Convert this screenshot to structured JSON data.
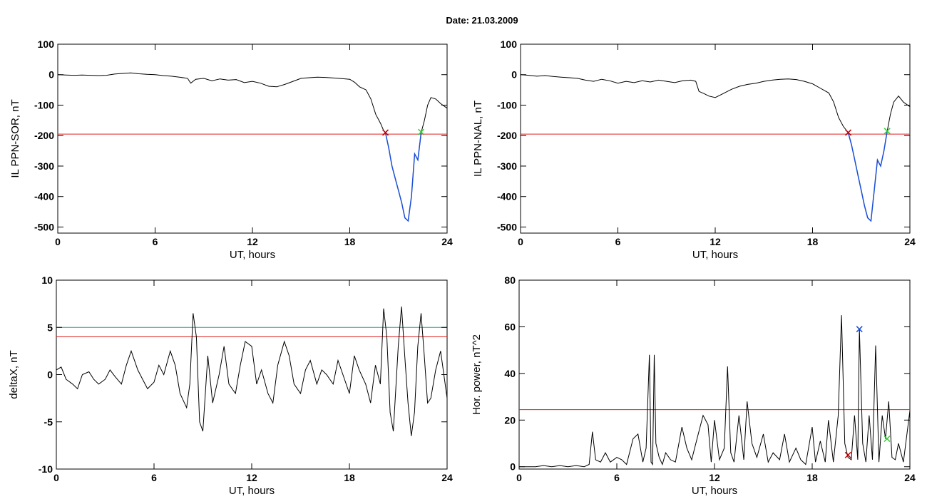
{
  "title": "Date:  21.03.2009",
  "chart_data": [
    {
      "type": "line",
      "xlabel": "UT, hours",
      "ylabel": "IL PPN-SOR, nT",
      "xlim": [
        0,
        24
      ],
      "ylim": [
        -520,
        100
      ],
      "xticks": [
        0,
        6,
        12,
        18,
        24
      ],
      "yticks": [
        100,
        0,
        -100,
        -200,
        -300,
        -400,
        -500
      ],
      "threshold": -195,
      "colors": {
        "line": "#000000",
        "highlight": "#1a4fd6",
        "threshold": "#e02020",
        "start_marker": "#c00000",
        "end_marker": "#33cc33"
      },
      "markers": [
        {
          "x": 20.2,
          "y": -190,
          "symbol": "x",
          "color": "#c00000"
        },
        {
          "x": 22.4,
          "y": -188,
          "symbol": "x",
          "color": "#33cc33"
        }
      ],
      "highlight_range": [
        20.2,
        22.4
      ],
      "x": [
        0,
        0.5,
        1,
        1.5,
        2,
        2.5,
        3,
        3.5,
        4,
        4.5,
        5,
        5.5,
        6,
        6.5,
        7,
        7.5,
        8,
        8.2,
        8.5,
        9,
        9.5,
        10,
        10.5,
        11,
        11.5,
        12,
        12.5,
        13,
        13.5,
        14,
        14.5,
        15,
        15.5,
        16,
        16.5,
        17,
        17.5,
        18,
        18.3,
        18.6,
        19,
        19.3,
        19.6,
        19.9,
        20.1,
        20.2,
        20.4,
        20.6,
        20.8,
        21,
        21.2,
        21.4,
        21.6,
        21.8,
        22,
        22.2,
        22.4,
        22.6,
        22.8,
        23,
        23.3,
        23.6,
        24
      ],
      "y": [
        0,
        -1,
        -2,
        -1,
        -2,
        -3,
        -2,
        2,
        4,
        6,
        3,
        1,
        0,
        -3,
        -5,
        -8,
        -12,
        -28,
        -15,
        -12,
        -20,
        -14,
        -18,
        -16,
        -26,
        -22,
        -28,
        -38,
        -40,
        -32,
        -22,
        -12,
        -10,
        -8,
        -9,
        -11,
        -13,
        -15,
        -25,
        -40,
        -50,
        -80,
        -130,
        -160,
        -185,
        -190,
        -240,
        -300,
        -340,
        -380,
        -420,
        -470,
        -480,
        -400,
        -260,
        -280,
        -190,
        -150,
        -100,
        -75,
        -80,
        -95,
        -110
      ]
    },
    {
      "type": "line",
      "xlabel": "UT, hours",
      "ylabel": "IL PPN-NAL, nT",
      "xlim": [
        0,
        24
      ],
      "ylim": [
        -520,
        100
      ],
      "xticks": [
        0,
        6,
        12,
        18,
        24
      ],
      "yticks": [
        100,
        0,
        -100,
        -200,
        -300,
        -400,
        -500
      ],
      "threshold": -195,
      "colors": {
        "line": "#000000",
        "highlight": "#1a4fd6",
        "threshold": "#e02020",
        "start_marker": "#c00000",
        "end_marker": "#33cc33"
      },
      "markers": [
        {
          "x": 20.2,
          "y": -190,
          "symbol": "x",
          "color": "#c00000"
        },
        {
          "x": 22.6,
          "y": -185,
          "symbol": "x",
          "color": "#33cc33"
        }
      ],
      "highlight_range": [
        20.2,
        22.6
      ],
      "x": [
        0,
        0.5,
        1,
        1.5,
        2,
        2.5,
        3,
        3.5,
        4,
        4.5,
        5,
        5.5,
        6,
        6.5,
        7,
        7.5,
        8,
        8.5,
        9,
        9.5,
        10,
        10.5,
        10.8,
        11,
        11.3,
        11.6,
        12,
        12.5,
        13,
        13.5,
        14,
        14.5,
        15,
        15.5,
        16,
        16.5,
        17,
        17.5,
        18,
        18.5,
        19,
        19.3,
        19.6,
        19.9,
        20.2,
        20.4,
        20.6,
        20.8,
        21,
        21.2,
        21.4,
        21.6,
        21.8,
        22,
        22.2,
        22.4,
        22.6,
        22.8,
        23,
        23.3,
        23.6,
        24
      ],
      "y": [
        0,
        -2,
        -5,
        -3,
        -6,
        -8,
        -10,
        -12,
        -18,
        -22,
        -15,
        -20,
        -28,
        -22,
        -26,
        -20,
        -24,
        -18,
        -22,
        -26,
        -20,
        -18,
        -22,
        -55,
        -62,
        -70,
        -75,
        -62,
        -48,
        -38,
        -32,
        -28,
        -22,
        -18,
        -15,
        -14,
        -16,
        -22,
        -30,
        -45,
        -60,
        -90,
        -140,
        -170,
        -190,
        -230,
        -280,
        -330,
        -380,
        -430,
        -470,
        -480,
        -380,
        -280,
        -300,
        -250,
        -185,
        -130,
        -90,
        -70,
        -90,
        -105
      ]
    },
    {
      "type": "line",
      "xlabel": "UT, hours",
      "ylabel": "deltaX, nT",
      "xlim": [
        0,
        24
      ],
      "ylim": [
        -10,
        10
      ],
      "xticks": [
        0,
        6,
        12,
        18,
        24
      ],
      "yticks": [
        10,
        5,
        0,
        -5,
        -10
      ],
      "thresholds": [
        {
          "y": 5,
          "color": "#2a9d9d"
        },
        {
          "y": 4,
          "color": "#e02020"
        }
      ],
      "colors": {
        "line": "#000000"
      },
      "x": [
        0,
        0.3,
        0.6,
        1,
        1.3,
        1.6,
        2,
        2.3,
        2.6,
        3,
        3.3,
        3.6,
        4,
        4.3,
        4.6,
        5,
        5.3,
        5.6,
        6,
        6.3,
        6.6,
        7,
        7.3,
        7.6,
        8,
        8.2,
        8.4,
        8.6,
        8.8,
        9,
        9.3,
        9.6,
        10,
        10.3,
        10.6,
        11,
        11.3,
        11.6,
        12,
        12.3,
        12.6,
        13,
        13.3,
        13.6,
        14,
        14.3,
        14.6,
        15,
        15.3,
        15.6,
        16,
        16.3,
        16.6,
        17,
        17.3,
        17.6,
        18,
        18.3,
        18.6,
        19,
        19.3,
        19.6,
        19.9,
        20.1,
        20.3,
        20.5,
        20.7,
        21,
        21.2,
        21.4,
        21.6,
        21.8,
        22,
        22.2,
        22.4,
        22.6,
        22.8,
        23,
        23.3,
        23.6,
        24
      ],
      "y": [
        0.5,
        0.8,
        -0.5,
        -1,
        -1.5,
        0,
        0.3,
        -0.5,
        -1,
        -0.5,
        0.5,
        -0.2,
        -1,
        1,
        2.5,
        0.5,
        -0.5,
        -1.5,
        -0.8,
        1,
        0,
        2.5,
        1,
        -2,
        -3.5,
        -1,
        6.5,
        4,
        -5,
        -6,
        2,
        -3,
        0,
        3,
        -1,
        -2,
        1,
        3.5,
        3,
        -1,
        0.5,
        -2,
        -3,
        1,
        3.5,
        2,
        -1,
        -2,
        0.5,
        1.5,
        -1,
        0.5,
        0,
        -1,
        1.5,
        0,
        -2,
        2,
        0.5,
        -1,
        -3,
        1,
        -1,
        7,
        4,
        -4,
        -6,
        3,
        7.2,
        2,
        -3,
        -6.5,
        -4,
        3,
        6.5,
        2,
        -3,
        -2.5,
        0.5,
        2.5,
        -2.5
      ]
    },
    {
      "type": "line",
      "xlabel": "UT, hours",
      "ylabel": "Hor. power, nT^2",
      "xlim": [
        0,
        24
      ],
      "ylim": [
        -1,
        80
      ],
      "xticks": [
        0,
        6,
        12,
        18,
        24
      ],
      "yticks": [
        80,
        60,
        40,
        20,
        0
      ],
      "threshold": 24.5,
      "colors": {
        "line": "#000000",
        "threshold": "#e02020",
        "peak_marker": "#1a4fd6",
        "end_marker": "#33cc33",
        "start_marker": "#c00000"
      },
      "markers": [
        {
          "x": 20.2,
          "y": 5,
          "symbol": "x",
          "color": "#c00000"
        },
        {
          "x": 20.9,
          "y": 59,
          "symbol": "x",
          "color": "#1a4fd6"
        },
        {
          "x": 22.6,
          "y": 12,
          "symbol": "x",
          "color": "#33cc33"
        }
      ],
      "x": [
        0,
        0.5,
        1,
        1.5,
        2,
        2.5,
        3,
        3.5,
        4,
        4.3,
        4.5,
        4.7,
        5,
        5.3,
        5.6,
        6,
        6.3,
        6.6,
        7,
        7.3,
        7.6,
        7.8,
        8,
        8.1,
        8.2,
        8.3,
        8.4,
        8.6,
        8.8,
        9,
        9.3,
        9.6,
        10,
        10.3,
        10.6,
        11,
        11.3,
        11.6,
        11.8,
        12,
        12.3,
        12.6,
        12.8,
        13,
        13.2,
        13.5,
        13.8,
        14,
        14.3,
        14.6,
        15,
        15.3,
        15.6,
        16,
        16.3,
        16.6,
        17,
        17.3,
        17.6,
        18,
        18.2,
        18.5,
        18.8,
        19,
        19.3,
        19.6,
        19.8,
        20,
        20.2,
        20.4,
        20.6,
        20.8,
        20.9,
        21.1,
        21.3,
        21.5,
        21.7,
        21.9,
        22.1,
        22.3,
        22.5,
        22.7,
        22.9,
        23.1,
        23.3,
        23.6,
        24
      ],
      "y": [
        0,
        0,
        0,
        0.5,
        0,
        0.5,
        0,
        0.5,
        0,
        1,
        15,
        3,
        2,
        6,
        2,
        4,
        3,
        1,
        12,
        14,
        2,
        8,
        48,
        2,
        1,
        48,
        10,
        4,
        1,
        6,
        3,
        2,
        17,
        8,
        3,
        14,
        22,
        18,
        2,
        20,
        3,
        8,
        43,
        6,
        2,
        22,
        3,
        28,
        10,
        4,
        14,
        2,
        6,
        3,
        14,
        2,
        8,
        3,
        1,
        17,
        2,
        11,
        2,
        20,
        2,
        22,
        65,
        10,
        4,
        3,
        22,
        3,
        59,
        10,
        2,
        22,
        3,
        52,
        2,
        22,
        12,
        28,
        4,
        3,
        10,
        2,
        24
      ]
    }
  ]
}
